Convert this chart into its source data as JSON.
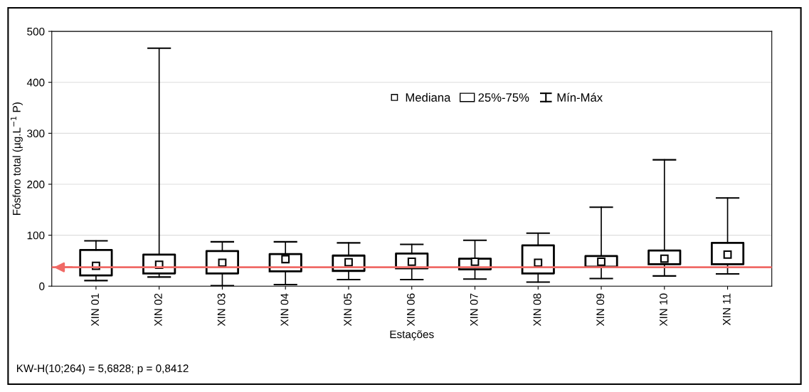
{
  "chart_data": {
    "type": "box",
    "xlabel": "Estações",
    "ylabel": "Fósforo total (µg.L$^{−1}$ P)",
    "categories": [
      "XIN 01",
      "XIN 02",
      "XIN 03",
      "XIN 04",
      "XIN 05",
      "XIN 06",
      "XIN 07",
      "XIN 08",
      "XIN 09",
      "XIN 10",
      "XIN 11"
    ],
    "series": [
      {
        "type": "box",
        "name": "25%-75%",
        "color": "#000000",
        "boxes": [
          {
            "low": 11,
            "q1": 21,
            "median": 40,
            "q3": 71,
            "high": 89
          },
          {
            "low": 18,
            "q1": 25,
            "median": 42,
            "q3": 62,
            "high": 467
          },
          {
            "low": 1,
            "q1": 25,
            "median": 46,
            "q3": 69,
            "high": 87
          },
          {
            "low": 3,
            "q1": 29,
            "median": 53,
            "q3": 63,
            "high": 87
          },
          {
            "low": 13,
            "q1": 30,
            "median": 47,
            "q3": 60,
            "high": 85
          },
          {
            "low": 13,
            "q1": 35,
            "median": 48,
            "q3": 64,
            "high": 82
          },
          {
            "low": 14,
            "q1": 33,
            "median": 48,
            "q3": 54,
            "high": 90
          },
          {
            "low": 8,
            "q1": 25,
            "median": 46,
            "q3": 80,
            "high": 104
          },
          {
            "low": 15,
            "q1": 38,
            "median": 48,
            "q3": 59,
            "high": 155
          },
          {
            "low": 20,
            "q1": 43,
            "median": 54,
            "q3": 70,
            "high": 248
          },
          {
            "low": 24,
            "q1": 43,
            "median": 62,
            "q3": 85,
            "high": 173
          }
        ]
      }
    ],
    "ylim": [
      0,
      500
    ],
    "yticks": [
      0,
      100,
      200,
      300,
      400,
      500
    ],
    "grid": "y",
    "legend": "top right",
    "marker": "square",
    "ref_lines": [
      {
        "axis": "y",
        "value": 37,
        "color": "#f06a66"
      }
    ],
    "annotations": [
      "KW-H(10;264) = 5,6828; p = 0,8412",
      "Mediana",
      "Mín-Máx"
    ]
  }
}
